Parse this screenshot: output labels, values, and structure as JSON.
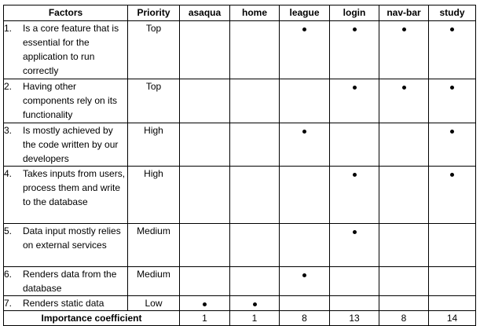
{
  "table": {
    "headers": [
      "Factors",
      "Priority",
      "asaqua",
      "home",
      "league",
      "login",
      "nav-bar",
      "study"
    ],
    "components": [
      "asaqua",
      "home",
      "league",
      "login",
      "nav-bar",
      "study"
    ],
    "rows": [
      {
        "num": "1.",
        "text": "Is a core feature that is essential for the application to run correctly",
        "priority": "Top",
        "marks": [
          false,
          false,
          true,
          true,
          true,
          true
        ]
      },
      {
        "num": "2.",
        "text": "Having other components rely on its functionality",
        "priority": "Top",
        "marks": [
          false,
          false,
          false,
          true,
          true,
          true
        ]
      },
      {
        "num": "3.",
        "text": "Is mostly achieved by the code written by our developers",
        "priority": "High",
        "marks": [
          false,
          false,
          true,
          false,
          false,
          true
        ]
      },
      {
        "num": "4.",
        "text": "Takes inputs from users, process them and write to the database",
        "priority": "High",
        "marks": [
          false,
          false,
          false,
          true,
          false,
          true
        ]
      },
      {
        "num": "5.",
        "text": "Data input mostly relies on external services",
        "priority": "Medium",
        "marks": [
          false,
          false,
          false,
          true,
          false,
          false
        ]
      },
      {
        "num": "6.",
        "text": "Renders data from the database",
        "priority": "Medium",
        "marks": [
          false,
          false,
          true,
          false,
          false,
          false
        ]
      },
      {
        "num": "7.",
        "text": "Renders static data",
        "priority": "Low",
        "marks": [
          true,
          true,
          false,
          false,
          false,
          false
        ]
      }
    ],
    "total": {
      "label": "Importance coefficient",
      "values": [
        "1",
        "1",
        "8",
        "13",
        "8",
        "14"
      ]
    }
  }
}
